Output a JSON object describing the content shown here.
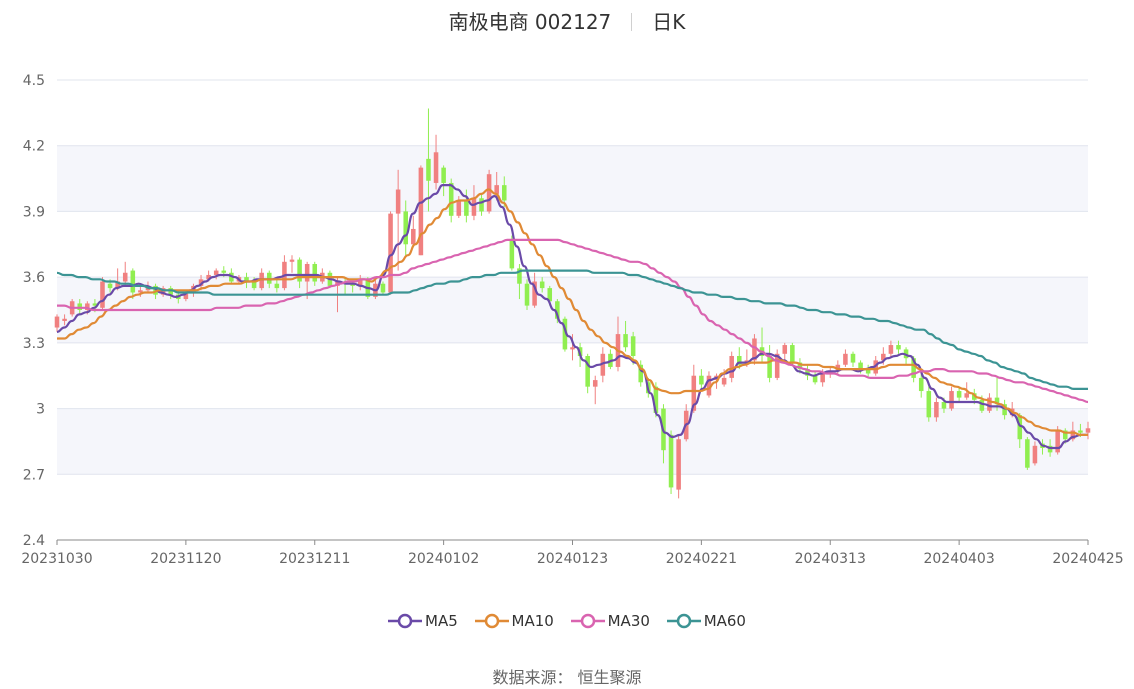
{
  "chart_data": {
    "type": "candlestick",
    "title": "南极电商 002127",
    "subtitle": "日K",
    "ylim": [
      2.4,
      4.5
    ],
    "yticks": [
      "4.5",
      "4.2",
      "3.9",
      "3.6",
      "3.3",
      "3",
      "2.7",
      "2.4"
    ],
    "yticks_values": [
      4.5,
      4.2,
      3.9,
      3.6,
      3.3,
      3.0,
      2.7,
      2.4
    ],
    "xticks": [
      "20231030",
      "20231120",
      "20231211",
      "20240102",
      "20240123",
      "20240221",
      "20240313",
      "20240403",
      "20240425"
    ],
    "colors": {
      "up": "#f08080",
      "down": "#90ee50",
      "MA5": "#6a4aa8",
      "MA10": "#e08a35",
      "MA30": "#d964b0",
      "MA60": "#3c9494"
    },
    "candles": [
      [
        3.37,
        3.42,
        3.43,
        3.35
      ],
      [
        3.4,
        3.41,
        3.43,
        3.38
      ],
      [
        3.43,
        3.49,
        3.5,
        3.42
      ],
      [
        3.48,
        3.45,
        3.5,
        3.43
      ],
      [
        3.45,
        3.48,
        3.49,
        3.43
      ],
      [
        3.48,
        3.47,
        3.5,
        3.44
      ],
      [
        3.46,
        3.58,
        3.6,
        3.45
      ],
      [
        3.57,
        3.55,
        3.59,
        3.53
      ],
      [
        3.55,
        3.58,
        3.64,
        3.54
      ],
      [
        3.58,
        3.62,
        3.67,
        3.56
      ],
      [
        3.63,
        3.53,
        3.64,
        3.5
      ],
      [
        3.53,
        3.54,
        3.56,
        3.51
      ],
      [
        3.54,
        3.56,
        3.58,
        3.53
      ],
      [
        3.56,
        3.52,
        3.57,
        3.5
      ],
      [
        3.52,
        3.55,
        3.56,
        3.51
      ],
      [
        3.55,
        3.52,
        3.56,
        3.5
      ],
      [
        3.52,
        3.5,
        3.54,
        3.48
      ],
      [
        3.5,
        3.53,
        3.54,
        3.49
      ],
      [
        3.53,
        3.56,
        3.57,
        3.51
      ],
      [
        3.56,
        3.59,
        3.61,
        3.54
      ],
      [
        3.59,
        3.61,
        3.63,
        3.58
      ],
      [
        3.61,
        3.63,
        3.64,
        3.59
      ],
      [
        3.63,
        3.62,
        3.65,
        3.6
      ],
      [
        3.62,
        3.58,
        3.64,
        3.57
      ],
      [
        3.58,
        3.6,
        3.61,
        3.57
      ],
      [
        3.6,
        3.58,
        3.62,
        3.55
      ],
      [
        3.58,
        3.55,
        3.6,
        3.54
      ],
      [
        3.55,
        3.62,
        3.64,
        3.54
      ],
      [
        3.62,
        3.57,
        3.63,
        3.55
      ],
      [
        3.57,
        3.55,
        3.59,
        3.53
      ],
      [
        3.55,
        3.67,
        3.7,
        3.54
      ],
      [
        3.67,
        3.68,
        3.7,
        3.62
      ],
      [
        3.68,
        3.58,
        3.69,
        3.55
      ],
      [
        3.58,
        3.66,
        3.67,
        3.5
      ],
      [
        3.66,
        3.58,
        3.67,
        3.56
      ],
      [
        3.58,
        3.62,
        3.64,
        3.57
      ],
      [
        3.62,
        3.56,
        3.63,
        3.55
      ],
      [
        3.56,
        3.58,
        3.6,
        3.44
      ],
      [
        3.58,
        3.57,
        3.6,
        3.52
      ],
      [
        3.57,
        3.56,
        3.58,
        3.53
      ],
      [
        3.56,
        3.59,
        3.61,
        3.54
      ],
      [
        3.59,
        3.51,
        3.6,
        3.5
      ],
      [
        3.51,
        3.57,
        3.59,
        3.5
      ],
      [
        3.57,
        3.53,
        3.58,
        3.52
      ],
      [
        3.53,
        3.89,
        3.9,
        3.52
      ],
      [
        3.89,
        4.0,
        4.09,
        3.63
      ],
      [
        3.9,
        3.75,
        3.95,
        3.7
      ],
      [
        3.75,
        3.82,
        3.88,
        3.74
      ],
      [
        3.7,
        4.1,
        4.11,
        3.7
      ],
      [
        4.14,
        4.04,
        4.37,
        3.9
      ],
      [
        4.03,
        4.17,
        4.25,
        4.0
      ],
      [
        4.1,
        4.03,
        4.11,
        3.97
      ],
      [
        4.03,
        3.88,
        4.05,
        3.85
      ],
      [
        3.88,
        3.95,
        3.97,
        3.87
      ],
      [
        3.95,
        3.88,
        4.0,
        3.85
      ],
      [
        3.88,
        3.96,
        4.02,
        3.86
      ],
      [
        3.96,
        3.9,
        3.98,
        3.88
      ],
      [
        3.9,
        4.07,
        4.09,
        3.89
      ],
      [
        3.98,
        4.02,
        4.08,
        3.95
      ],
      [
        4.02,
        3.95,
        4.06,
        3.92
      ],
      [
        3.77,
        3.64,
        3.79,
        3.63
      ],
      [
        3.64,
        3.57,
        3.66,
        3.5
      ],
      [
        3.57,
        3.47,
        3.59,
        3.45
      ],
      [
        3.47,
        3.58,
        3.62,
        3.46
      ],
      [
        3.58,
        3.55,
        3.6,
        3.53
      ],
      [
        3.55,
        3.49,
        3.56,
        3.47
      ],
      [
        3.49,
        3.41,
        3.5,
        3.39
      ],
      [
        3.41,
        3.27,
        3.42,
        3.26
      ],
      [
        3.27,
        3.28,
        3.34,
        3.22
      ],
      [
        3.28,
        3.24,
        3.3,
        3.19
      ],
      [
        3.24,
        3.1,
        3.25,
        3.07
      ],
      [
        3.1,
        3.13,
        3.15,
        3.02
      ],
      [
        3.15,
        3.25,
        3.28,
        3.12
      ],
      [
        3.25,
        3.19,
        3.27,
        3.18
      ],
      [
        3.19,
        3.34,
        3.42,
        3.17
      ],
      [
        3.34,
        3.28,
        3.4,
        3.26
      ],
      [
        3.33,
        3.24,
        3.35,
        3.2
      ],
      [
        3.2,
        3.12,
        3.22,
        3.1
      ],
      [
        3.12,
        3.07,
        3.14,
        3.05
      ],
      [
        3.1,
        2.98,
        3.12,
        2.96
      ],
      [
        3.0,
        2.81,
        3.02,
        2.75
      ],
      [
        2.88,
        2.64,
        2.9,
        2.61
      ],
      [
        2.63,
        2.86,
        2.88,
        2.59
      ],
      [
        2.86,
        2.99,
        3.02,
        2.85
      ],
      [
        2.99,
        3.15,
        3.2,
        2.98
      ],
      [
        3.15,
        3.11,
        3.18,
        3.09
      ],
      [
        3.06,
        3.15,
        3.17,
        3.05
      ],
      [
        3.13,
        3.15,
        3.16,
        3.09
      ],
      [
        3.11,
        3.14,
        3.18,
        3.1
      ],
      [
        3.14,
        3.24,
        3.26,
        3.12
      ],
      [
        3.24,
        3.2,
        3.28,
        3.18
      ],
      [
        3.2,
        3.22,
        3.27,
        3.19
      ],
      [
        3.22,
        3.32,
        3.34,
        3.2
      ],
      [
        3.28,
        3.24,
        3.37,
        3.21
      ],
      [
        3.24,
        3.14,
        3.29,
        3.12
      ],
      [
        3.14,
        3.25,
        3.27,
        3.13
      ],
      [
        3.25,
        3.29,
        3.3,
        3.22
      ],
      [
        3.29,
        3.21,
        3.3,
        3.2
      ],
      [
        3.21,
        3.18,
        3.23,
        3.16
      ],
      [
        3.18,
        3.15,
        3.2,
        3.13
      ],
      [
        3.15,
        3.12,
        3.17,
        3.11
      ],
      [
        3.12,
        3.16,
        3.18,
        3.1
      ],
      [
        3.16,
        3.17,
        3.19,
        3.14
      ],
      [
        3.17,
        3.2,
        3.22,
        3.16
      ],
      [
        3.2,
        3.25,
        3.27,
        3.19
      ],
      [
        3.25,
        3.21,
        3.26,
        3.19
      ],
      [
        3.21,
        3.18,
        3.22,
        3.16
      ],
      [
        3.18,
        3.16,
        3.2,
        3.14
      ],
      [
        3.16,
        3.22,
        3.24,
        3.15
      ],
      [
        3.22,
        3.25,
        3.28,
        3.2
      ],
      [
        3.25,
        3.29,
        3.31,
        3.23
      ],
      [
        3.29,
        3.27,
        3.31,
        3.25
      ],
      [
        3.27,
        3.23,
        3.28,
        3.2
      ],
      [
        3.23,
        3.14,
        3.24,
        3.12
      ],
      [
        3.14,
        3.08,
        3.16,
        3.05
      ],
      [
        3.08,
        2.96,
        3.1,
        2.94
      ],
      [
        2.96,
        3.03,
        3.05,
        2.94
      ],
      [
        3.03,
        3.0,
        3.05,
        2.98
      ],
      [
        3.0,
        3.08,
        3.1,
        2.99
      ],
      [
        3.08,
        3.05,
        3.1,
        3.03
      ],
      [
        3.05,
        3.07,
        3.12,
        3.04
      ],
      [
        3.07,
        3.04,
        3.09,
        3.02
      ],
      [
        3.04,
        2.99,
        3.06,
        2.98
      ],
      [
        2.99,
        3.05,
        3.07,
        2.98
      ],
      [
        3.05,
        3.02,
        3.14,
        2.99
      ],
      [
        3.02,
        2.97,
        3.04,
        2.95
      ],
      [
        2.97,
        3.0,
        3.03,
        2.96
      ],
      [
        2.97,
        2.86,
        2.98,
        2.82
      ],
      [
        2.86,
        2.73,
        2.87,
        2.72
      ],
      [
        2.75,
        2.83,
        2.85,
        2.74
      ],
      [
        2.84,
        2.82,
        2.86,
        2.79
      ],
      [
        2.83,
        2.8,
        2.86,
        2.78
      ],
      [
        2.8,
        2.9,
        2.92,
        2.79
      ],
      [
        2.9,
        2.86,
        2.91,
        2.84
      ],
      [
        2.86,
        2.9,
        2.94,
        2.85
      ],
      [
        2.9,
        2.89,
        2.93,
        2.87
      ],
      [
        2.89,
        2.91,
        2.94,
        2.86
      ]
    ],
    "series": [
      {
        "name": "MA5",
        "values": [
          3.35,
          3.37,
          3.4,
          3.43,
          3.44,
          3.46,
          3.49,
          3.52,
          3.55,
          3.56,
          3.56,
          3.57,
          3.56,
          3.55,
          3.53,
          3.52,
          3.51,
          3.52,
          3.54,
          3.56,
          3.58,
          3.6,
          3.61,
          3.61,
          3.6,
          3.58,
          3.58,
          3.59,
          3.59,
          3.59,
          3.6,
          3.61,
          3.61,
          3.61,
          3.61,
          3.61,
          3.6,
          3.59,
          3.58,
          3.57,
          3.57,
          3.56,
          3.55,
          3.54,
          3.61,
          3.7,
          3.75,
          3.79,
          3.89,
          3.94,
          3.96,
          3.98,
          4.02,
          4.02,
          4.0,
          3.97,
          3.93,
          3.94,
          3.95,
          3.97,
          3.92,
          3.84,
          3.74,
          3.65,
          3.57,
          3.52,
          3.5,
          3.45,
          3.39,
          3.33,
          3.28,
          3.22,
          3.19,
          3.2,
          3.21,
          3.22,
          3.24,
          3.23,
          3.21,
          3.17,
          3.07,
          2.97,
          2.89,
          2.87,
          2.88,
          2.93,
          3.02,
          3.09,
          3.13,
          3.14,
          3.16,
          3.17,
          3.21,
          3.21,
          3.23,
          3.25,
          3.25,
          3.24,
          3.22,
          3.2,
          3.17,
          3.16,
          3.15,
          3.16,
          3.17,
          3.17,
          3.18,
          3.18,
          3.17,
          3.18,
          3.19,
          3.21,
          3.23,
          3.24,
          3.25,
          3.24,
          3.2,
          3.14,
          3.09,
          3.05,
          3.03,
          3.03,
          3.03,
          3.03,
          3.03,
          3.02,
          3.01,
          3.01,
          3.0,
          2.97,
          2.92,
          2.89,
          2.86,
          2.83,
          2.82,
          2.82,
          2.85,
          2.87,
          2.88,
          2.88
        ]
      },
      {
        "name": "MA10",
        "values": [
          3.32,
          3.32,
          3.34,
          3.36,
          3.37,
          3.39,
          3.42,
          3.45,
          3.47,
          3.49,
          3.51,
          3.52,
          3.53,
          3.53,
          3.54,
          3.54,
          3.54,
          3.54,
          3.54,
          3.54,
          3.55,
          3.56,
          3.56,
          3.57,
          3.57,
          3.57,
          3.58,
          3.58,
          3.59,
          3.59,
          3.59,
          3.59,
          3.59,
          3.6,
          3.6,
          3.6,
          3.6,
          3.6,
          3.6,
          3.6,
          3.59,
          3.59,
          3.59,
          3.58,
          3.6,
          3.63,
          3.65,
          3.67,
          3.7,
          3.75,
          3.8,
          3.84,
          3.87,
          3.91,
          3.94,
          3.95,
          3.95,
          3.96,
          3.98,
          4.0,
          3.98,
          3.94,
          3.9,
          3.85,
          3.8,
          3.75,
          3.7,
          3.65,
          3.6,
          3.55,
          3.5,
          3.45,
          3.4,
          3.36,
          3.33,
          3.3,
          3.28,
          3.26,
          3.24,
          3.22,
          3.18,
          3.13,
          3.09,
          3.08,
          3.07,
          3.07,
          3.08,
          3.08,
          3.08,
          3.09,
          3.12,
          3.16,
          3.18,
          3.19,
          3.2,
          3.21,
          3.21,
          3.21,
          3.22,
          3.22,
          3.21,
          3.21,
          3.2,
          3.2,
          3.2,
          3.19,
          3.19,
          3.18,
          3.18,
          3.18,
          3.18,
          3.18,
          3.18,
          3.19,
          3.2,
          3.2,
          3.2,
          3.2,
          3.18,
          3.16,
          3.14,
          3.12,
          3.11,
          3.1,
          3.09,
          3.07,
          3.05,
          3.04,
          3.03,
          3.02,
          3.0,
          2.98,
          2.96,
          2.94,
          2.92,
          2.91,
          2.9,
          2.9,
          2.89,
          2.89,
          2.88,
          2.88
        ]
      },
      {
        "name": "MA30",
        "values": [
          3.47,
          3.47,
          3.46,
          3.46,
          3.46,
          3.45,
          3.45,
          3.45,
          3.45,
          3.45,
          3.45,
          3.45,
          3.45,
          3.45,
          3.45,
          3.45,
          3.45,
          3.45,
          3.45,
          3.45,
          3.45,
          3.45,
          3.46,
          3.46,
          3.46,
          3.46,
          3.47,
          3.47,
          3.47,
          3.48,
          3.48,
          3.49,
          3.5,
          3.51,
          3.52,
          3.53,
          3.54,
          3.55,
          3.56,
          3.57,
          3.58,
          3.58,
          3.59,
          3.59,
          3.6,
          3.6,
          3.61,
          3.61,
          3.62,
          3.64,
          3.65,
          3.66,
          3.67,
          3.68,
          3.69,
          3.7,
          3.71,
          3.72,
          3.73,
          3.74,
          3.75,
          3.76,
          3.77,
          3.77,
          3.77,
          3.77,
          3.77,
          3.77,
          3.77,
          3.77,
          3.76,
          3.75,
          3.74,
          3.73,
          3.72,
          3.71,
          3.7,
          3.69,
          3.68,
          3.67,
          3.67,
          3.66,
          3.64,
          3.62,
          3.6,
          3.58,
          3.55,
          3.51,
          3.47,
          3.43,
          3.4,
          3.38,
          3.36,
          3.34,
          3.32,
          3.3,
          3.28,
          3.26,
          3.24,
          3.22,
          3.21,
          3.2,
          3.19,
          3.18,
          3.17,
          3.17,
          3.16,
          3.16,
          3.15,
          3.15,
          3.15,
          3.15,
          3.14,
          3.14,
          3.14,
          3.14,
          3.15,
          3.15,
          3.16,
          3.17,
          3.17,
          3.18,
          3.18,
          3.17,
          3.17,
          3.17,
          3.17,
          3.16,
          3.16,
          3.15,
          3.14,
          3.13,
          3.12,
          3.12,
          3.11,
          3.1,
          3.09,
          3.08,
          3.07,
          3.06,
          3.05,
          3.04,
          3.03
        ]
      },
      {
        "name": "MA60",
        "values": [
          3.62,
          3.61,
          3.61,
          3.6,
          3.6,
          3.59,
          3.59,
          3.58,
          3.58,
          3.57,
          3.57,
          3.56,
          3.56,
          3.55,
          3.55,
          3.54,
          3.54,
          3.53,
          3.53,
          3.53,
          3.53,
          3.53,
          3.52,
          3.52,
          3.52,
          3.52,
          3.52,
          3.52,
          3.52,
          3.52,
          3.52,
          3.52,
          3.52,
          3.52,
          3.52,
          3.52,
          3.52,
          3.52,
          3.52,
          3.52,
          3.52,
          3.52,
          3.52,
          3.52,
          3.52,
          3.52,
          3.52,
          3.53,
          3.53,
          3.53,
          3.54,
          3.55,
          3.56,
          3.57,
          3.57,
          3.58,
          3.58,
          3.59,
          3.6,
          3.6,
          3.61,
          3.61,
          3.62,
          3.62,
          3.62,
          3.63,
          3.63,
          3.63,
          3.63,
          3.63,
          3.63,
          3.63,
          3.63,
          3.63,
          3.63,
          3.62,
          3.62,
          3.62,
          3.62,
          3.62,
          3.61,
          3.61,
          3.6,
          3.59,
          3.58,
          3.57,
          3.56,
          3.55,
          3.54,
          3.53,
          3.53,
          3.52,
          3.52,
          3.51,
          3.51,
          3.5,
          3.5,
          3.49,
          3.49,
          3.48,
          3.48,
          3.48,
          3.47,
          3.47,
          3.46,
          3.45,
          3.45,
          3.44,
          3.44,
          3.43,
          3.43,
          3.42,
          3.42,
          3.41,
          3.41,
          3.4,
          3.4,
          3.39,
          3.38,
          3.37,
          3.36,
          3.36,
          3.34,
          3.32,
          3.3,
          3.29,
          3.27,
          3.26,
          3.25,
          3.24,
          3.22,
          3.21,
          3.19,
          3.18,
          3.17,
          3.16,
          3.14,
          3.13,
          3.12,
          3.11,
          3.1,
          3.1,
          3.09,
          3.09,
          3.09
        ]
      }
    ]
  },
  "legend": [
    "MA5",
    "MA10",
    "MA30",
    "MA60"
  ],
  "source": "数据来源：  恒生聚源"
}
